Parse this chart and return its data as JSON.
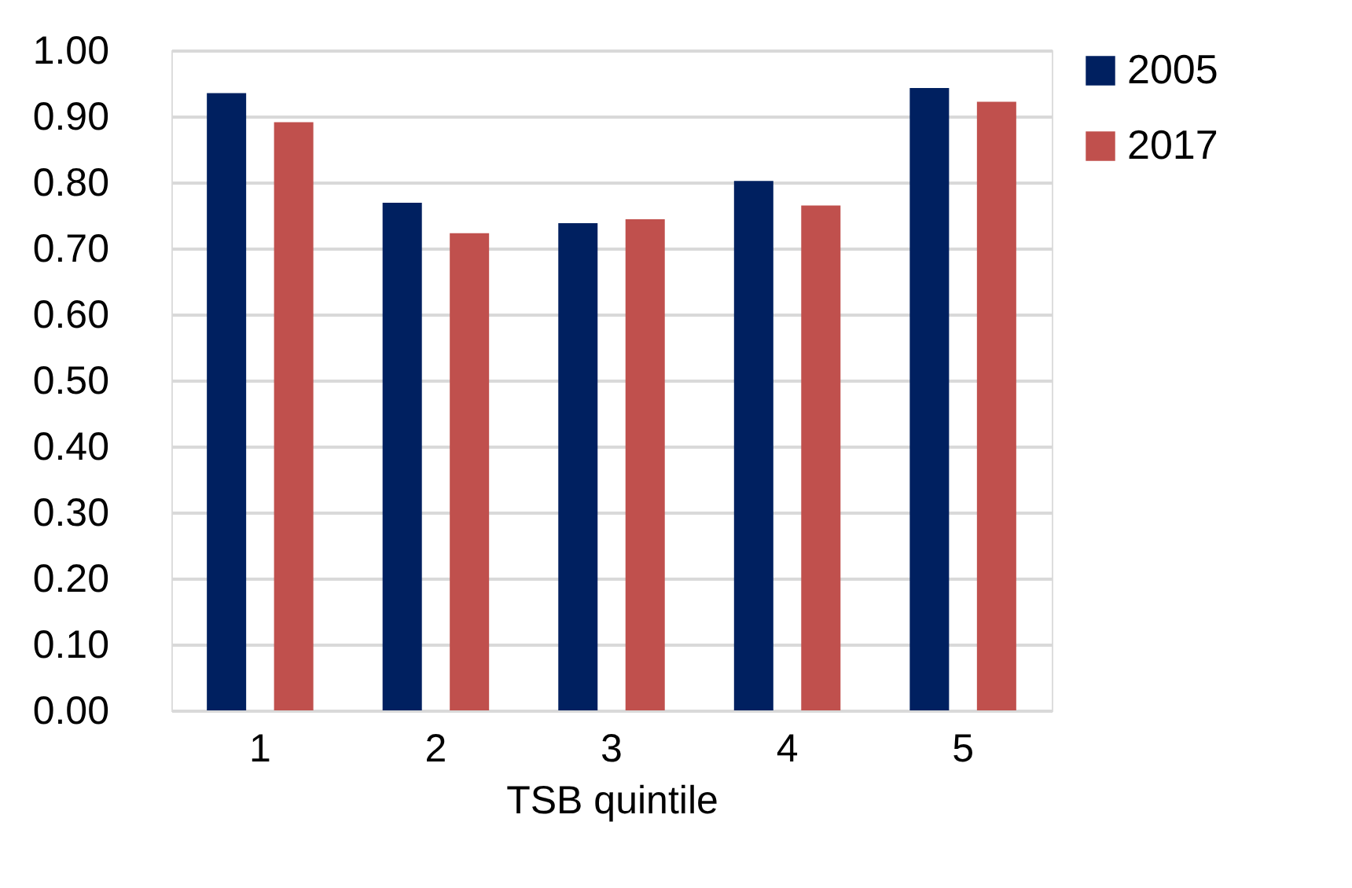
{
  "chart_data": {
    "type": "bar",
    "xlabel": "TSB quintile",
    "categories": [
      "1",
      "2",
      "3",
      "4",
      "5"
    ],
    "series": [
      {
        "name": "2005",
        "color": "#002060",
        "values": [
          0.935,
          0.769,
          0.738,
          0.802,
          0.943
        ]
      },
      {
        "name": "2017",
        "color": "#c0504d",
        "values": [
          0.891,
          0.723,
          0.744,
          0.765,
          0.922
        ]
      }
    ],
    "ylim": [
      0,
      1
    ],
    "yticks": [
      {
        "value": 0,
        "label": "0.00"
      },
      {
        "value": 0.1,
        "label": "0.10"
      },
      {
        "value": 0.2,
        "label": "0.20"
      },
      {
        "value": 0.3,
        "label": "0.30"
      },
      {
        "value": 0.4,
        "label": "0.40"
      },
      {
        "value": 0.5,
        "label": "0.50"
      },
      {
        "value": 0.6,
        "label": "0.60"
      },
      {
        "value": 0.7,
        "label": "0.70"
      },
      {
        "value": 0.8,
        "label": "0.80"
      },
      {
        "value": 0.9,
        "label": "0.90"
      },
      {
        "value": 1,
        "label": "1.00"
      }
    ],
    "grid": "y",
    "legend": "right"
  }
}
